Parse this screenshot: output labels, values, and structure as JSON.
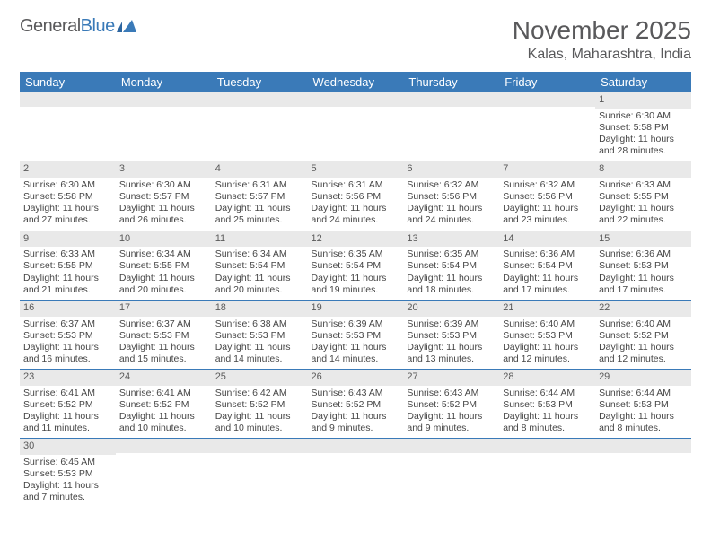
{
  "logo": {
    "word1": "General",
    "word2": "Blue"
  },
  "title": "November 2025",
  "location": "Kalas, Maharashtra, India",
  "dayHeaders": [
    "Sunday",
    "Monday",
    "Tuesday",
    "Wednesday",
    "Thursday",
    "Friday",
    "Saturday"
  ],
  "colors": {
    "accent": "#3a7ab8",
    "grayBand": "#e9e9e9",
    "text": "#464646"
  },
  "weeks": [
    [
      {
        "n": "",
        "sr": "",
        "ss": "",
        "dl": ""
      },
      {
        "n": "",
        "sr": "",
        "ss": "",
        "dl": ""
      },
      {
        "n": "",
        "sr": "",
        "ss": "",
        "dl": ""
      },
      {
        "n": "",
        "sr": "",
        "ss": "",
        "dl": ""
      },
      {
        "n": "",
        "sr": "",
        "ss": "",
        "dl": ""
      },
      {
        "n": "",
        "sr": "",
        "ss": "",
        "dl": ""
      },
      {
        "n": "1",
        "sr": "Sunrise: 6:30 AM",
        "ss": "Sunset: 5:58 PM",
        "dl": "Daylight: 11 hours and 28 minutes."
      }
    ],
    [
      {
        "n": "2",
        "sr": "Sunrise: 6:30 AM",
        "ss": "Sunset: 5:58 PM",
        "dl": "Daylight: 11 hours and 27 minutes."
      },
      {
        "n": "3",
        "sr": "Sunrise: 6:30 AM",
        "ss": "Sunset: 5:57 PM",
        "dl": "Daylight: 11 hours and 26 minutes."
      },
      {
        "n": "4",
        "sr": "Sunrise: 6:31 AM",
        "ss": "Sunset: 5:57 PM",
        "dl": "Daylight: 11 hours and 25 minutes."
      },
      {
        "n": "5",
        "sr": "Sunrise: 6:31 AM",
        "ss": "Sunset: 5:56 PM",
        "dl": "Daylight: 11 hours and 24 minutes."
      },
      {
        "n": "6",
        "sr": "Sunrise: 6:32 AM",
        "ss": "Sunset: 5:56 PM",
        "dl": "Daylight: 11 hours and 24 minutes."
      },
      {
        "n": "7",
        "sr": "Sunrise: 6:32 AM",
        "ss": "Sunset: 5:56 PM",
        "dl": "Daylight: 11 hours and 23 minutes."
      },
      {
        "n": "8",
        "sr": "Sunrise: 6:33 AM",
        "ss": "Sunset: 5:55 PM",
        "dl": "Daylight: 11 hours and 22 minutes."
      }
    ],
    [
      {
        "n": "9",
        "sr": "Sunrise: 6:33 AM",
        "ss": "Sunset: 5:55 PM",
        "dl": "Daylight: 11 hours and 21 minutes."
      },
      {
        "n": "10",
        "sr": "Sunrise: 6:34 AM",
        "ss": "Sunset: 5:55 PM",
        "dl": "Daylight: 11 hours and 20 minutes."
      },
      {
        "n": "11",
        "sr": "Sunrise: 6:34 AM",
        "ss": "Sunset: 5:54 PM",
        "dl": "Daylight: 11 hours and 20 minutes."
      },
      {
        "n": "12",
        "sr": "Sunrise: 6:35 AM",
        "ss": "Sunset: 5:54 PM",
        "dl": "Daylight: 11 hours and 19 minutes."
      },
      {
        "n": "13",
        "sr": "Sunrise: 6:35 AM",
        "ss": "Sunset: 5:54 PM",
        "dl": "Daylight: 11 hours and 18 minutes."
      },
      {
        "n": "14",
        "sr": "Sunrise: 6:36 AM",
        "ss": "Sunset: 5:54 PM",
        "dl": "Daylight: 11 hours and 17 minutes."
      },
      {
        "n": "15",
        "sr": "Sunrise: 6:36 AM",
        "ss": "Sunset: 5:53 PM",
        "dl": "Daylight: 11 hours and 17 minutes."
      }
    ],
    [
      {
        "n": "16",
        "sr": "Sunrise: 6:37 AM",
        "ss": "Sunset: 5:53 PM",
        "dl": "Daylight: 11 hours and 16 minutes."
      },
      {
        "n": "17",
        "sr": "Sunrise: 6:37 AM",
        "ss": "Sunset: 5:53 PM",
        "dl": "Daylight: 11 hours and 15 minutes."
      },
      {
        "n": "18",
        "sr": "Sunrise: 6:38 AM",
        "ss": "Sunset: 5:53 PM",
        "dl": "Daylight: 11 hours and 14 minutes."
      },
      {
        "n": "19",
        "sr": "Sunrise: 6:39 AM",
        "ss": "Sunset: 5:53 PM",
        "dl": "Daylight: 11 hours and 14 minutes."
      },
      {
        "n": "20",
        "sr": "Sunrise: 6:39 AM",
        "ss": "Sunset: 5:53 PM",
        "dl": "Daylight: 11 hours and 13 minutes."
      },
      {
        "n": "21",
        "sr": "Sunrise: 6:40 AM",
        "ss": "Sunset: 5:53 PM",
        "dl": "Daylight: 11 hours and 12 minutes."
      },
      {
        "n": "22",
        "sr": "Sunrise: 6:40 AM",
        "ss": "Sunset: 5:52 PM",
        "dl": "Daylight: 11 hours and 12 minutes."
      }
    ],
    [
      {
        "n": "23",
        "sr": "Sunrise: 6:41 AM",
        "ss": "Sunset: 5:52 PM",
        "dl": "Daylight: 11 hours and 11 minutes."
      },
      {
        "n": "24",
        "sr": "Sunrise: 6:41 AM",
        "ss": "Sunset: 5:52 PM",
        "dl": "Daylight: 11 hours and 10 minutes."
      },
      {
        "n": "25",
        "sr": "Sunrise: 6:42 AM",
        "ss": "Sunset: 5:52 PM",
        "dl": "Daylight: 11 hours and 10 minutes."
      },
      {
        "n": "26",
        "sr": "Sunrise: 6:43 AM",
        "ss": "Sunset: 5:52 PM",
        "dl": "Daylight: 11 hours and 9 minutes."
      },
      {
        "n": "27",
        "sr": "Sunrise: 6:43 AM",
        "ss": "Sunset: 5:52 PM",
        "dl": "Daylight: 11 hours and 9 minutes."
      },
      {
        "n": "28",
        "sr": "Sunrise: 6:44 AM",
        "ss": "Sunset: 5:53 PM",
        "dl": "Daylight: 11 hours and 8 minutes."
      },
      {
        "n": "29",
        "sr": "Sunrise: 6:44 AM",
        "ss": "Sunset: 5:53 PM",
        "dl": "Daylight: 11 hours and 8 minutes."
      }
    ],
    [
      {
        "n": "30",
        "sr": "Sunrise: 6:45 AM",
        "ss": "Sunset: 5:53 PM",
        "dl": "Daylight: 11 hours and 7 minutes."
      },
      {
        "n": "",
        "sr": "",
        "ss": "",
        "dl": ""
      },
      {
        "n": "",
        "sr": "",
        "ss": "",
        "dl": ""
      },
      {
        "n": "",
        "sr": "",
        "ss": "",
        "dl": ""
      },
      {
        "n": "",
        "sr": "",
        "ss": "",
        "dl": ""
      },
      {
        "n": "",
        "sr": "",
        "ss": "",
        "dl": ""
      },
      {
        "n": "",
        "sr": "",
        "ss": "",
        "dl": ""
      }
    ]
  ]
}
